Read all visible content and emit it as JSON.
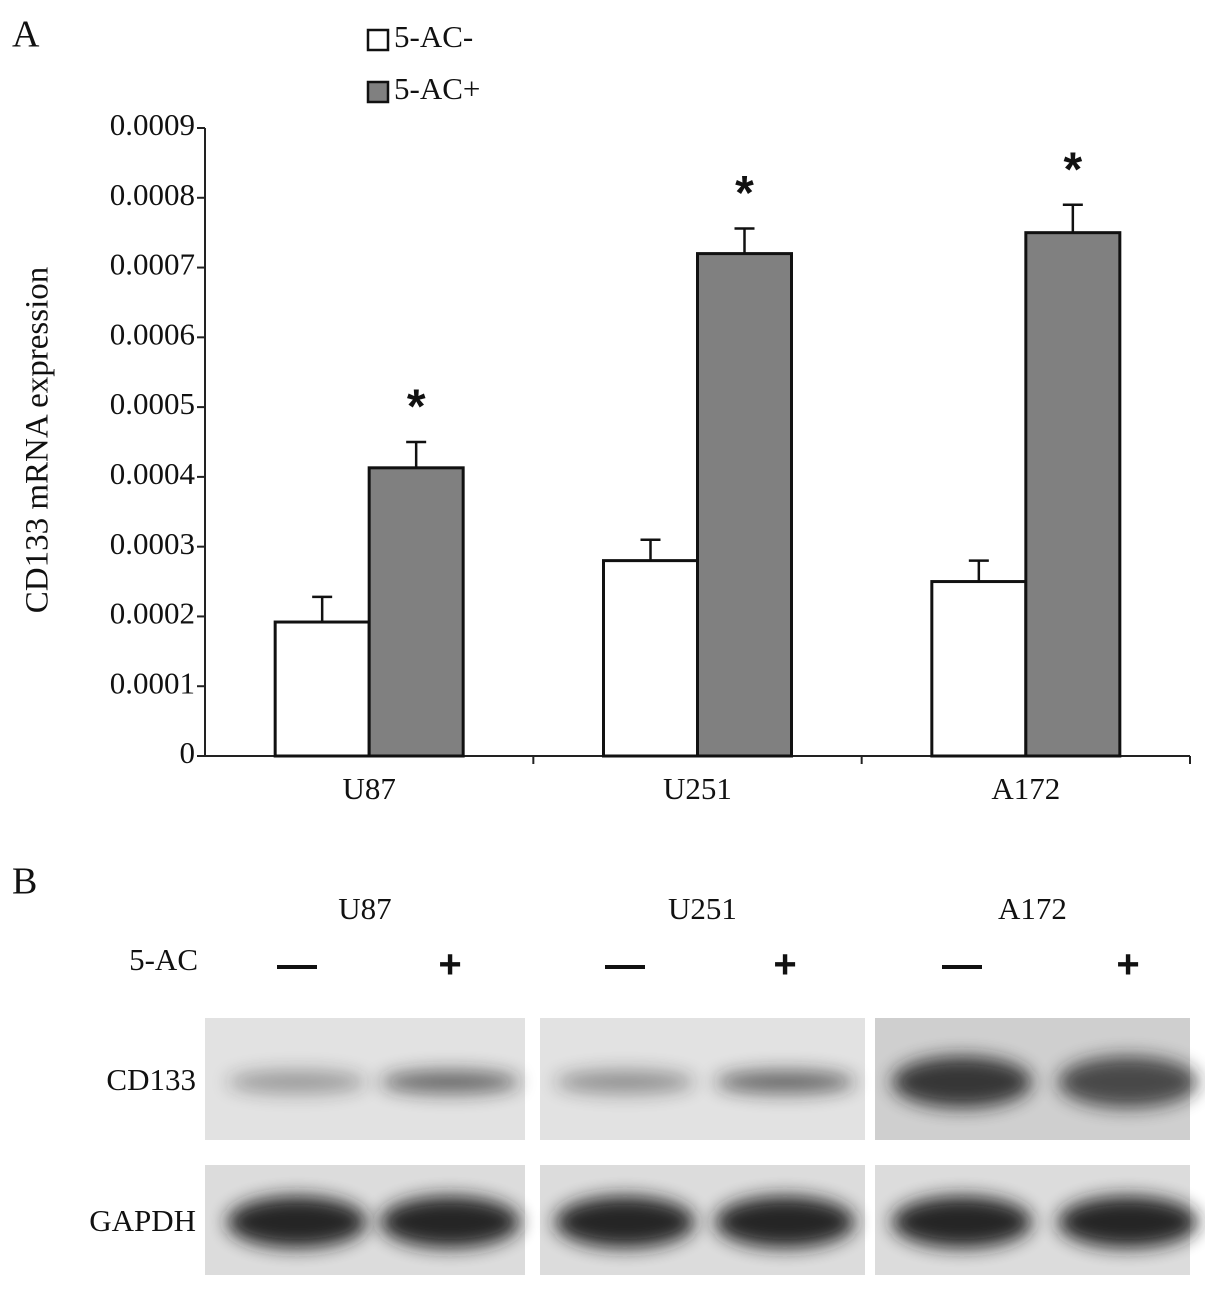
{
  "panel_labels": [
    "A",
    "B"
  ],
  "chart_data": {
    "type": "bar",
    "ylabel": "CD133 mRNA expression",
    "categories": [
      "U87",
      "U251",
      "A172"
    ],
    "series": [
      {
        "name": "5-AC-",
        "color": "#ffffff",
        "values": [
          0.000192,
          0.00028,
          0.00025
        ],
        "errors": [
          3.6e-05,
          3e-05,
          3e-05
        ]
      },
      {
        "name": "5-AC+",
        "color": "#808080",
        "values": [
          0.000413,
          0.00072,
          0.00075
        ],
        "errors": [
          3.7e-05,
          3.6e-05,
          4e-05
        ]
      }
    ],
    "significance": [
      "*",
      "*",
      "*"
    ],
    "ylim": [
      0,
      0.0009
    ],
    "yticks": [
      0,
      0.0001,
      0.0002,
      0.0003,
      0.0004,
      0.0005,
      0.0006,
      0.0007,
      0.0008,
      0.0009
    ],
    "legend": "top",
    "grid": false
  },
  "blot": {
    "groups": [
      "U87",
      "U251",
      "A172"
    ],
    "treatment_label": "5-AC",
    "lanes": [
      "—",
      "+",
      "—",
      "+",
      "—",
      "+"
    ],
    "rows": [
      "CD133",
      "GAPDH"
    ]
  }
}
